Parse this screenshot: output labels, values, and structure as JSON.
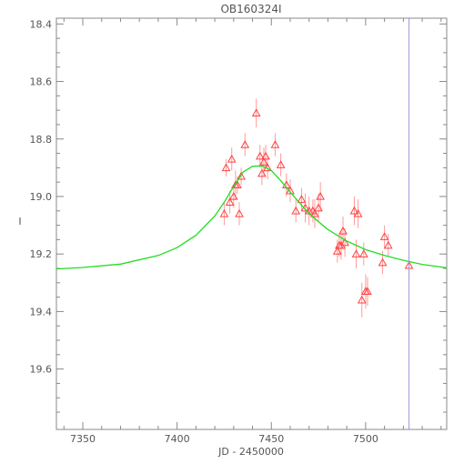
{
  "chart_data": {
    "type": "scatter",
    "title": "OB160324I",
    "xlabel": "JD - 2450000",
    "ylabel": "I",
    "xlim": [
      7336,
      7543
    ],
    "ylim": [
      19.81,
      18.38
    ],
    "y_inverted": true,
    "grid": false,
    "x_ticks": [
      7350,
      7400,
      7450,
      7500
    ],
    "x_tick_labels": [
      "7350",
      "7400",
      "7450",
      "7500"
    ],
    "y_ticks": [
      18.4,
      18.6,
      18.8,
      19.0,
      19.2,
      19.4,
      19.6
    ],
    "y_tick_labels": [
      "18.4",
      "18.6",
      "18.8",
      "19.0",
      "19.2",
      "19.4",
      "19.6"
    ],
    "colors": {
      "points": "#ff4040",
      "errorbars": "#ff9a9a",
      "model": "#22dd22",
      "marker_line": "#9999dd",
      "axes": "#888888",
      "text": "#555555"
    },
    "vertical_line_x": 7523,
    "model_curve": {
      "name": "",
      "x": [
        7336,
        7350,
        7370,
        7390,
        7400,
        7410,
        7420,
        7425,
        7430,
        7435,
        7440,
        7445,
        7450,
        7455,
        7460,
        7470,
        7480,
        7490,
        7500,
        7510,
        7520,
        7530,
        7543
      ],
      "y": [
        19.252,
        19.247,
        19.235,
        19.205,
        19.178,
        19.135,
        19.068,
        19.02,
        18.965,
        18.915,
        18.895,
        18.893,
        18.91,
        18.945,
        18.985,
        19.06,
        19.115,
        19.155,
        19.185,
        19.205,
        19.222,
        19.236,
        19.248
      ]
    },
    "series": [
      {
        "name": "",
        "x": [
          7425,
          7426,
          7428,
          7429,
          7430,
          7431,
          7432,
          7433,
          7434,
          7436,
          7442,
          7444,
          7445,
          7446,
          7447,
          7448,
          7452,
          7455,
          7458,
          7460,
          7463,
          7466,
          7468,
          7470,
          7472,
          7473,
          7475,
          7476,
          7485,
          7486,
          7487,
          7488,
          7489,
          7494,
          7495,
          7496,
          7498,
          7499,
          7500,
          7501,
          7509,
          7510,
          7512,
          7523
        ],
        "y": [
          19.06,
          18.9,
          19.02,
          18.87,
          19.0,
          18.96,
          18.96,
          19.06,
          18.93,
          18.82,
          18.71,
          18.86,
          18.92,
          18.88,
          18.86,
          18.9,
          18.82,
          18.89,
          18.96,
          18.98,
          19.05,
          19.01,
          19.04,
          19.05,
          19.05,
          19.06,
          19.04,
          19.0,
          19.19,
          19.17,
          19.17,
          19.12,
          19.16,
          19.05,
          19.2,
          19.06,
          19.36,
          19.2,
          19.33,
          19.33,
          19.23,
          19.14,
          19.17,
          19.24
        ],
        "yerr": [
          0.04,
          0.03,
          0.04,
          0.04,
          0.04,
          0.05,
          0.03,
          0.04,
          0.03,
          0.04,
          0.05,
          0.04,
          0.04,
          0.05,
          0.04,
          0.04,
          0.04,
          0.04,
          0.04,
          0.04,
          0.04,
          0.04,
          0.05,
          0.05,
          0.04,
          0.05,
          0.05,
          0.05,
          0.04,
          0.04,
          0.05,
          0.05,
          0.05,
          0.05,
          0.05,
          0.05,
          0.06,
          0.04,
          0.06,
          0.05,
          0.04,
          0.04,
          0.04,
          0.04
        ]
      }
    ]
  }
}
